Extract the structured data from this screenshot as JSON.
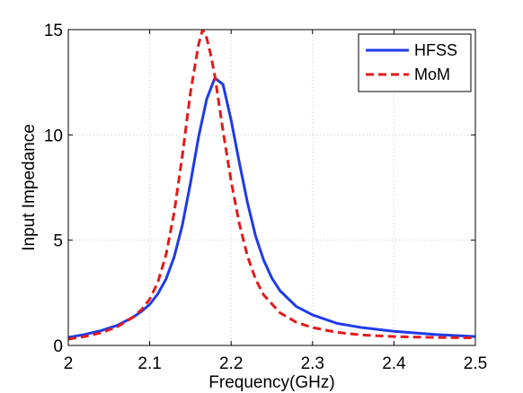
{
  "chart_data": {
    "type": "line",
    "title": "",
    "xlabel": "Frequency(GHz)",
    "ylabel": "Input Impedance",
    "xlim": [
      2.0,
      2.5
    ],
    "ylim": [
      0,
      15
    ],
    "xticks": [
      "2",
      "2.1",
      "2.2",
      "2.3",
      "2.4",
      "2.5"
    ],
    "yticks": [
      "0",
      "5",
      "10",
      "15"
    ],
    "grid": true,
    "legend_position": "top-right",
    "series": [
      {
        "name": "HFSS",
        "color": "#1f3be8",
        "style": "solid",
        "x": [
          2.0,
          2.02,
          2.04,
          2.06,
          2.08,
          2.09,
          2.1,
          2.11,
          2.12,
          2.13,
          2.14,
          2.15,
          2.16,
          2.17,
          2.18,
          2.19,
          2.2,
          2.21,
          2.22,
          2.23,
          2.24,
          2.25,
          2.26,
          2.28,
          2.3,
          2.33,
          2.36,
          2.4,
          2.45,
          2.5
        ],
        "y": [
          0.38,
          0.52,
          0.7,
          0.95,
          1.35,
          1.62,
          1.95,
          2.45,
          3.15,
          4.2,
          5.7,
          7.7,
          9.9,
          11.7,
          12.7,
          12.4,
          10.7,
          8.7,
          6.8,
          5.2,
          4.05,
          3.2,
          2.6,
          1.85,
          1.45,
          1.05,
          0.85,
          0.67,
          0.52,
          0.42
        ]
      },
      {
        "name": "MoM",
        "color": "#e31a1c",
        "style": "dashed",
        "x": [
          2.0,
          2.02,
          2.04,
          2.06,
          2.08,
          2.09,
          2.1,
          2.11,
          2.12,
          2.13,
          2.14,
          2.15,
          2.16,
          2.165,
          2.17,
          2.175,
          2.18,
          2.19,
          2.2,
          2.21,
          2.22,
          2.23,
          2.24,
          2.26,
          2.28,
          2.3,
          2.33,
          2.36,
          2.4,
          2.45,
          2.5
        ],
        "y": [
          0.3,
          0.42,
          0.6,
          0.88,
          1.35,
          1.7,
          2.2,
          3.0,
          4.3,
          6.3,
          9.0,
          12.0,
          14.3,
          15.0,
          14.6,
          13.8,
          12.8,
          10.2,
          7.8,
          5.8,
          4.25,
          3.15,
          2.4,
          1.55,
          1.1,
          0.85,
          0.62,
          0.5,
          0.42,
          0.38,
          0.36
        ]
      }
    ]
  }
}
